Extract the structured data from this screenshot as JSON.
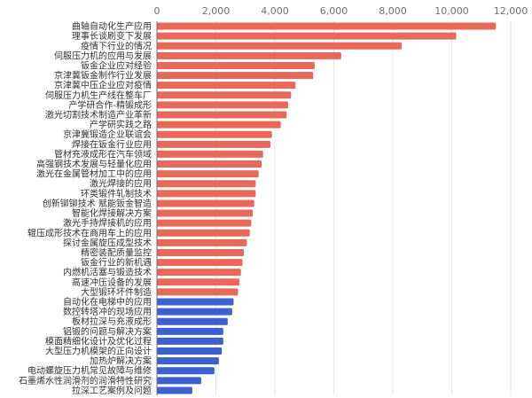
{
  "chart_data": {
    "type": "bar",
    "orientation": "horizontal",
    "title": "",
    "xlabel": "",
    "ylabel": "",
    "xlim": [
      0,
      12000
    ],
    "ticks": [
      0,
      2000,
      4000,
      6000,
      8000,
      10000,
      12000
    ],
    "tick_labels": [
      "0",
      "2,000",
      "4,000",
      "6,000",
      "8,000",
      "10,000",
      "12,000"
    ],
    "axis_position": "top",
    "grid": true,
    "colors": {
      "highlight": "#e8695a",
      "normal": "#3d5fd0"
    },
    "categories": [
      "曲轴自动化生产应用",
      "理事长谈刷变下发展",
      "疫情下行业的情况",
      "伺服压力机的应用与发展",
      "钣金企业应对经验",
      "京津冀钣金制作行业发展",
      "京津冀中压企业应对疫情",
      "伺服压力机生产线在整车厂",
      "产学研合作-精锻成形",
      "激光切割技术制造产业革新",
      "产学研实践之路",
      "京津冀锻造企业联谊会",
      "焊接在钣金行业应用",
      "管材充液成形在汽车领域",
      "高强钢技术发展与轻量化应用",
      "激光在金属管材加工中的应用",
      "激光焊接的应用",
      "环类锻件轧制技术",
      "创新铆铆技术 赋能钣金智造",
      "智能化焊接解决方案",
      "激光手持焊接机的应用",
      "辊压成形技术在商用车上的应用",
      "探讨金属旋压成型技术",
      "精密装配质量监控",
      "钣金行业的新机遇",
      "内燃机活塞与锻造技术",
      "高速冲压设备的发展",
      "大型锻环坏件制造",
      "自动化在电梯中的应用",
      "数控转塔冲的现场应用",
      "板材拉深与充液成形",
      "铝锻的问题与解决方案",
      "模面精细化设计及优化过程",
      "大型压力机模架的正向设计",
      "加热炉解决方案",
      "电动螺旋压力机常见故障与维修",
      "石墨烯水性润滑剂的润滑特性研究",
      "拉深工艺案例及问题"
    ],
    "values": [
      11500,
      10150,
      8300,
      6250,
      5350,
      5300,
      4700,
      4550,
      4450,
      4400,
      4200,
      3900,
      3850,
      3600,
      3550,
      3450,
      3350,
      3350,
      3300,
      3250,
      3200,
      3150,
      3050,
      2950,
      2900,
      2850,
      2800,
      2750,
      2600,
      2550,
      2400,
      2250,
      2250,
      2200,
      2100,
      1950,
      1500,
      1200
    ],
    "highlight_count": 28
  }
}
